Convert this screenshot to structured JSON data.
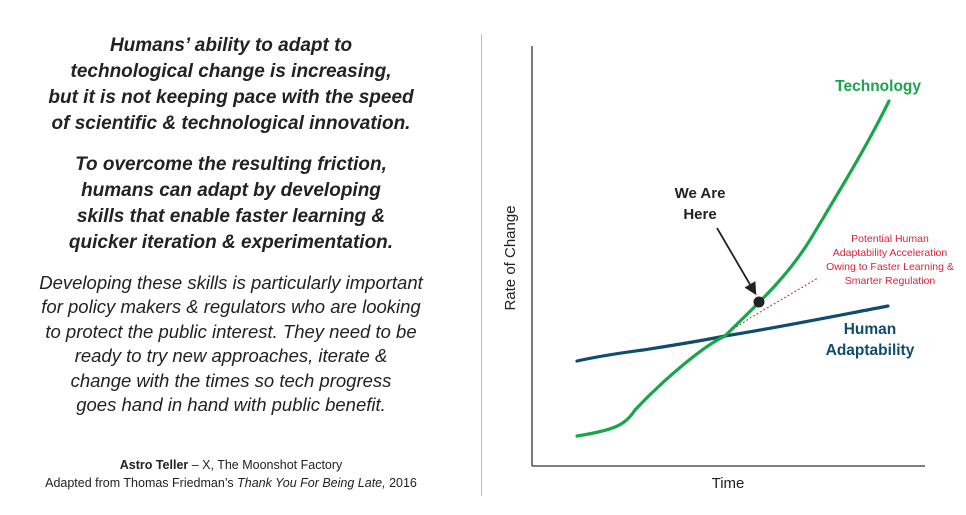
{
  "left_text": {
    "para1": [
      "Humans’ ability to adapt to",
      "technological change is increasing,",
      "but it is not keeping pace with the speed",
      "of scientific & technological innovation."
    ],
    "para2": [
      "To overcome the resulting friction,",
      "humans can adapt by developing",
      "skills that enable faster learning &",
      "quicker iteration & experimentation."
    ],
    "para3": [
      "Developing these skills is particularly important",
      "for policy makers & regulators who are looking",
      "to protect the public interest. They need to be",
      "ready to try new approaches, iterate &",
      "change with the times so tech progress",
      "goes hand in hand with public benefit."
    ],
    "attribution": {
      "author": "Astro Teller",
      "author_suffix": " – X, The Moonshot Factory",
      "source_prefix": "Adapted from Thomas Friedman’s ",
      "source_title": "Thank You For Being Late,",
      "source_suffix": " 2016"
    }
  },
  "diagram": {
    "y_axis_label": "Rate of Change",
    "x_axis_label": "Time",
    "technology_label": "Technology",
    "human_label": [
      "Human",
      "Adaptability"
    ],
    "we_are_here_label": [
      "We Are",
      "Here"
    ],
    "potential_label": [
      "Potential Human",
      "Adaptability Acceleration",
      "Owing to Faster Learning &",
      "Smarter Regulation"
    ],
    "colors": {
      "technology": "#1aa54a",
      "human": "#0f4c6e",
      "potential": "#e0203a",
      "text": "#222222",
      "axis": "#333333",
      "marker": "#222222"
    }
  }
}
